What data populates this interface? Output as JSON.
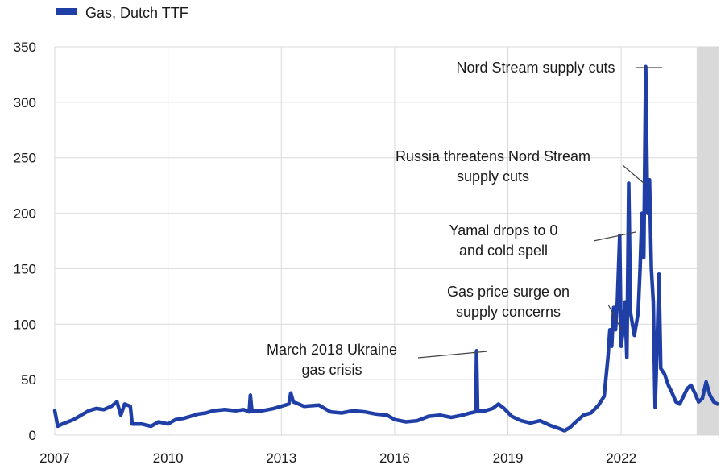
{
  "colors": {
    "series": "#1f3fa6",
    "grid": "#d9d9d9",
    "shade": "#d9d9d9",
    "text": "#1a1a1a"
  },
  "chart_data": {
    "type": "line",
    "title": "",
    "xlabel": "",
    "ylabel": "",
    "xlim": [
      2007.0,
      2024.6
    ],
    "ylim": [
      0,
      350
    ],
    "y_ticks": [
      0,
      50,
      100,
      150,
      200,
      250,
      300,
      350
    ],
    "x_ticks": [
      2007,
      2010,
      2013,
      2016,
      2019,
      2022
    ],
    "grid": "on",
    "legend": {
      "placement": "top-left",
      "entries": [
        "Gas, Dutch TTF"
      ]
    },
    "shaded_region": {
      "from": 2024.0,
      "to": 2024.6
    },
    "series": [
      {
        "name": "Gas, Dutch TTF",
        "points": [
          [
            2007.0,
            22
          ],
          [
            2007.08,
            8
          ],
          [
            2007.2,
            10
          ],
          [
            2007.35,
            12
          ],
          [
            2007.5,
            14
          ],
          [
            2007.7,
            18
          ],
          [
            2007.9,
            22
          ],
          [
            2008.1,
            24
          ],
          [
            2008.3,
            23
          ],
          [
            2008.5,
            26
          ],
          [
            2008.65,
            30
          ],
          [
            2008.75,
            18
          ],
          [
            2008.85,
            28
          ],
          [
            2009.0,
            26
          ],
          [
            2009.05,
            10
          ],
          [
            2009.3,
            10
          ],
          [
            2009.55,
            8
          ],
          [
            2009.75,
            12
          ],
          [
            2010.0,
            10
          ],
          [
            2010.2,
            14
          ],
          [
            2010.4,
            15
          ],
          [
            2010.6,
            17
          ],
          [
            2010.8,
            19
          ],
          [
            2011.0,
            20
          ],
          [
            2011.2,
            22
          ],
          [
            2011.5,
            23
          ],
          [
            2011.8,
            22
          ],
          [
            2012.0,
            23
          ],
          [
            2012.15,
            21
          ],
          [
            2012.18,
            36
          ],
          [
            2012.22,
            22
          ],
          [
            2012.5,
            22
          ],
          [
            2012.8,
            24
          ],
          [
            2013.0,
            26
          ],
          [
            2013.2,
            28
          ],
          [
            2013.25,
            38
          ],
          [
            2013.32,
            30
          ],
          [
            2013.6,
            26
          ],
          [
            2014.0,
            27
          ],
          [
            2014.3,
            21
          ],
          [
            2014.6,
            20
          ],
          [
            2014.9,
            22
          ],
          [
            2015.2,
            21
          ],
          [
            2015.5,
            19
          ],
          [
            2015.8,
            18
          ],
          [
            2016.0,
            14
          ],
          [
            2016.3,
            12
          ],
          [
            2016.6,
            13
          ],
          [
            2016.9,
            17
          ],
          [
            2017.2,
            18
          ],
          [
            2017.5,
            16
          ],
          [
            2017.8,
            18
          ],
          [
            2018.0,
            20
          ],
          [
            2018.15,
            21
          ],
          [
            2018.17,
            76
          ],
          [
            2018.2,
            22
          ],
          [
            2018.4,
            22
          ],
          [
            2018.6,
            24
          ],
          [
            2018.75,
            28
          ],
          [
            2018.9,
            24
          ],
          [
            2019.1,
            17
          ],
          [
            2019.35,
            13
          ],
          [
            2019.6,
            11
          ],
          [
            2019.85,
            13
          ],
          [
            2020.1,
            9
          ],
          [
            2020.35,
            6
          ],
          [
            2020.5,
            4
          ],
          [
            2020.65,
            7
          ],
          [
            2020.8,
            12
          ],
          [
            2021.0,
            18
          ],
          [
            2021.2,
            20
          ],
          [
            2021.4,
            27
          ],
          [
            2021.55,
            35
          ],
          [
            2021.65,
            70
          ],
          [
            2021.7,
            95
          ],
          [
            2021.75,
            80
          ],
          [
            2021.8,
            115
          ],
          [
            2021.85,
            95
          ],
          [
            2021.9,
            120
          ],
          [
            2021.96,
            180
          ],
          [
            2022.0,
            80
          ],
          [
            2022.05,
            95
          ],
          [
            2022.1,
            120
          ],
          [
            2022.15,
            70
          ],
          [
            2022.2,
            227
          ],
          [
            2022.25,
            110
          ],
          [
            2022.35,
            90
          ],
          [
            2022.45,
            110
          ],
          [
            2022.5,
            150
          ],
          [
            2022.55,
            200
          ],
          [
            2022.6,
            160
          ],
          [
            2022.65,
            332
          ],
          [
            2022.7,
            200
          ],
          [
            2022.75,
            230
          ],
          [
            2022.8,
            150
          ],
          [
            2022.85,
            120
          ],
          [
            2022.9,
            25
          ],
          [
            2022.95,
            80
          ],
          [
            2023.0,
            145
          ],
          [
            2023.05,
            60
          ],
          [
            2023.15,
            55
          ],
          [
            2023.25,
            45
          ],
          [
            2023.35,
            38
          ],
          [
            2023.45,
            30
          ],
          [
            2023.55,
            28
          ],
          [
            2023.65,
            35
          ],
          [
            2023.75,
            42
          ],
          [
            2023.85,
            45
          ],
          [
            2023.95,
            38
          ],
          [
            2024.05,
            30
          ],
          [
            2024.15,
            33
          ],
          [
            2024.25,
            48
          ],
          [
            2024.35,
            36
          ],
          [
            2024.45,
            30
          ],
          [
            2024.55,
            28
          ]
        ]
      }
    ],
    "annotations": [
      {
        "lines": [
          "Nord Stream supply cuts"
        ],
        "target": [
          2022.65,
          332
        ]
      },
      {
        "lines": [
          "Russia threatens Nord Stream",
          "supply cuts"
        ],
        "target": [
          2022.2,
          227
        ]
      },
      {
        "lines": [
          "Yamal drops to 0",
          "and cold spell"
        ],
        "target": [
          2021.96,
          180
        ]
      },
      {
        "lines": [
          "Gas price surge on",
          "supply concerns"
        ],
        "target": [
          2021.7,
          95
        ]
      },
      {
        "lines": [
          "March 2018 Ukraine",
          "gas crisis"
        ],
        "target": [
          2018.17,
          76
        ]
      }
    ]
  }
}
